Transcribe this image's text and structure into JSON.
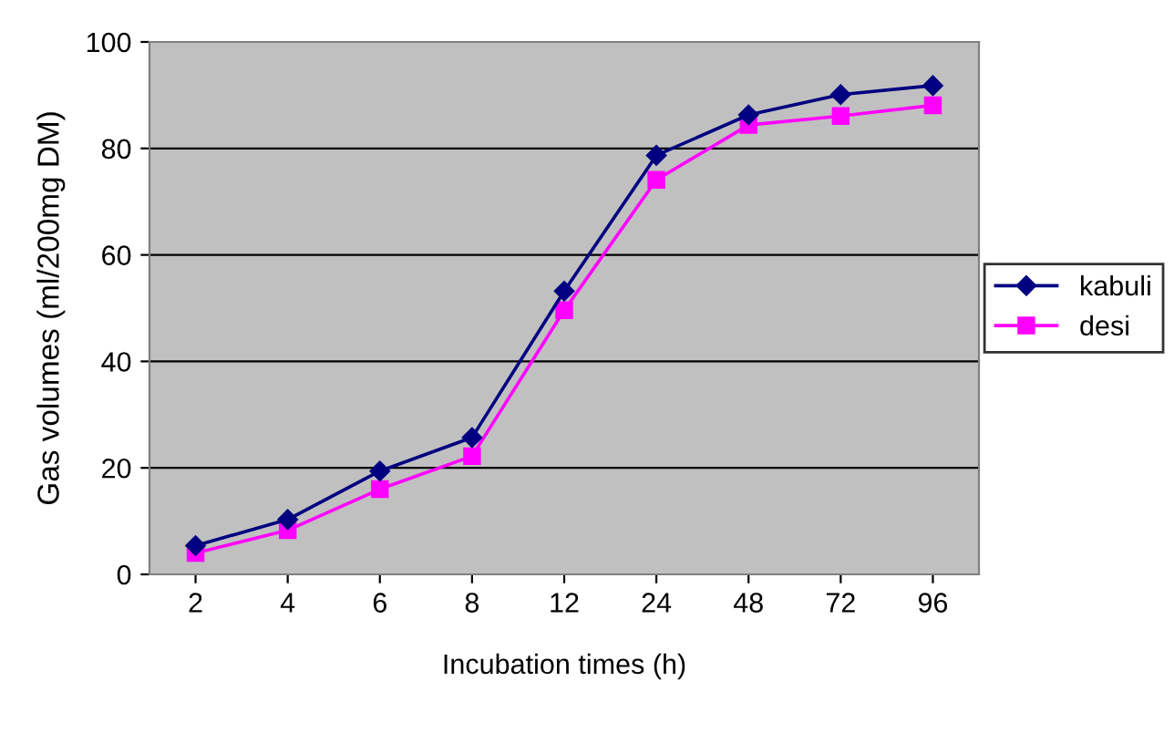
{
  "chart_data": {
    "type": "line",
    "xlabel": "Incubation times (h)",
    "ylabel": "Gas volumes (ml/200mg DM)",
    "categories": [
      "2",
      "4",
      "6",
      "8",
      "12",
      "24",
      "48",
      "72",
      "96"
    ],
    "series": [
      {
        "name": "kabuli",
        "color": "#000080",
        "marker": "diamond",
        "values": [
          5.4,
          10.3,
          19.4,
          25.7,
          53.2,
          78.7,
          86.3,
          90.1,
          91.8
        ]
      },
      {
        "name": "desi",
        "color": "#ff00ff",
        "marker": "square",
        "values": [
          4.0,
          8.3,
          16.0,
          22.2,
          49.6,
          74.1,
          84.4,
          86.1,
          88.1
        ]
      }
    ],
    "ylim": [
      0,
      100
    ],
    "yticks": [
      0,
      20,
      40,
      60,
      80,
      100
    ],
    "grid": "y",
    "legend": "right"
  }
}
